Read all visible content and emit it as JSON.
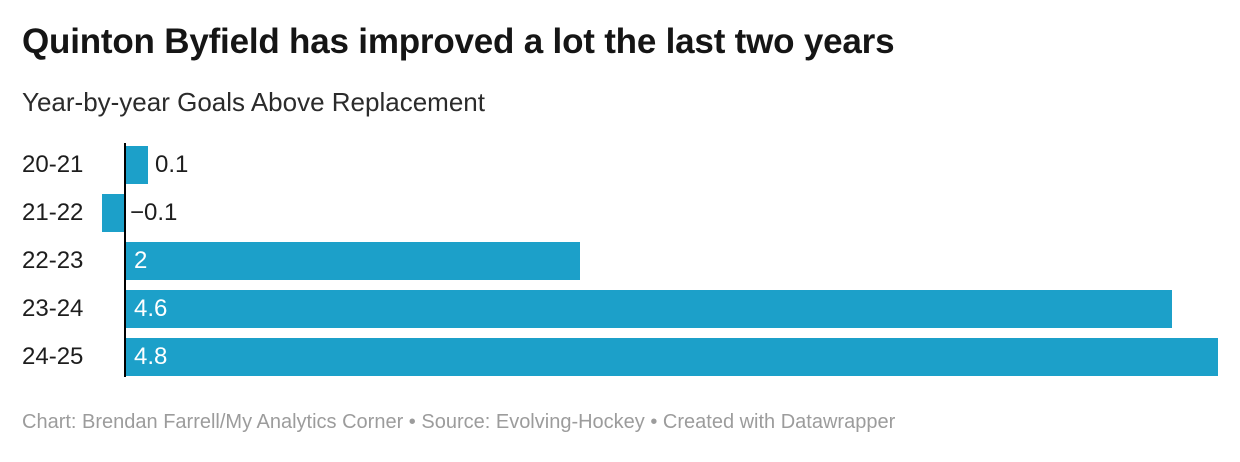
{
  "header": {
    "title": "Quinton Byfield has improved a lot the last two years",
    "subtitle": "Year-by-year Goals Above Replacement"
  },
  "chart_data": {
    "type": "bar",
    "orientation": "horizontal",
    "title": "Quinton Byfield has improved a lot the last two years",
    "subtitle": "Year-by-year Goals Above Replacement",
    "categories": [
      "20-21",
      "21-22",
      "22-23",
      "23-24",
      "24-25"
    ],
    "values": [
      0.1,
      -0.1,
      2,
      4.6,
      4.8
    ],
    "value_labels": [
      "0.1",
      "−0.1",
      "2",
      "4.6",
      "4.8"
    ],
    "xlabel": "",
    "ylabel": "",
    "xlim": [
      -0.2,
      4.8
    ],
    "grid": false,
    "legend": "none",
    "bar_color": "#1CA0C9",
    "axis_color": "#000000",
    "label_color": "#1d1d1d",
    "inside_label_color": "#ffffff"
  },
  "footer": {
    "text": "Chart: Brendan Farrell/My Analytics Corner • Source: Evolving-Hockey • Created with Datawrapper"
  }
}
